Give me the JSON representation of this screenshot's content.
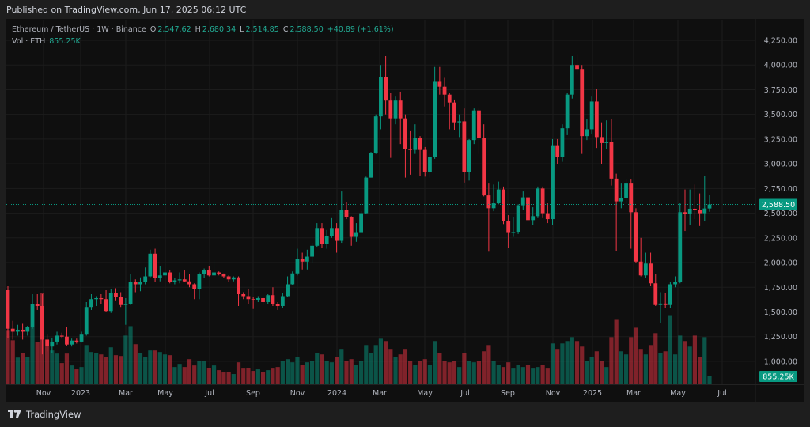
{
  "header": {
    "published": "Published on TradingView.com, Jun 17, 2025 06:12 UTC"
  },
  "legend": {
    "symbol": "Ethereum / TetherUS · 1W · Binance",
    "o_label": "O",
    "o": "2,547.62",
    "h_label": "H",
    "h": "2,680.34",
    "l_label": "L",
    "l": "2,514.85",
    "c_label": "C",
    "c": "2,588.50",
    "change": "+40.89 (+1.61%)",
    "vol_label": "Vol · ETH",
    "vol": "855.25K"
  },
  "footer": {
    "brand": "TradingView",
    "logo_text": "TV"
  },
  "colors": {
    "up": "#089981",
    "down": "#f23645",
    "background": "#0f0f0f",
    "grid": "#1c1c1c",
    "axis_text": "#b2b5be"
  },
  "chart_data": {
    "type": "candlestick",
    "symbol": "Ethereum / TetherUS",
    "interval": "1W",
    "exchange": "Binance",
    "ylim": [
      950,
      4350
    ],
    "grid": true,
    "y_ticks": [
      "4,250.00",
      "4,000.00",
      "3,750.00",
      "3,500.00",
      "3,250.00",
      "3,000.00",
      "2,750.00",
      "2,500.00",
      "2,250.00",
      "2,000.00",
      "1,750.00",
      "1,500.00",
      "1,250.00",
      "1,000.00"
    ],
    "y_tick_values": [
      4250,
      4000,
      3750,
      3500,
      3250,
      3000,
      2750,
      2500,
      2250,
      2000,
      1750,
      1500,
      1250,
      1000
    ],
    "x_ticks": [
      "Nov",
      "2023",
      "Mar",
      "May",
      "Jul",
      "Sep",
      "Nov",
      "2024",
      "Mar",
      "May",
      "Jul",
      "Sep",
      "Nov",
      "2025",
      "Mar",
      "May",
      "Jul"
    ],
    "last_price": 2588.5,
    "last_price_label": "2,588.50",
    "last_volume_label": "855.25K",
    "candle_fields": [
      "open",
      "high",
      "low",
      "close",
      "volume_K"
    ],
    "candles": [
      [
        1720,
        1760,
        1240,
        1330,
        5870
      ],
      [
        1330,
        1410,
        1220,
        1300,
        4760
      ],
      [
        1300,
        1370,
        1260,
        1320,
        2890
      ],
      [
        1320,
        1380,
        1220,
        1300,
        3400
      ],
      [
        1300,
        1360,
        1260,
        1350,
        2980
      ],
      [
        1350,
        1680,
        1330,
        1580,
        6210
      ],
      [
        1580,
        1680,
        1520,
        1560,
        4590
      ],
      [
        1560,
        1680,
        1070,
        1220,
        9860
      ],
      [
        1220,
        1270,
        1100,
        1150,
        4080
      ],
      [
        1150,
        1240,
        1080,
        1200,
        3660
      ],
      [
        1200,
        1300,
        1170,
        1260,
        3320
      ],
      [
        1260,
        1290,
        1230,
        1250,
        2300
      ],
      [
        1250,
        1350,
        1160,
        1170,
        3320
      ],
      [
        1170,
        1230,
        1150,
        1210,
        2040
      ],
      [
        1210,
        1230,
        1180,
        1200,
        1620
      ],
      [
        1200,
        1300,
        1190,
        1270,
        1870
      ],
      [
        1270,
        1600,
        1260,
        1550,
        4250
      ],
      [
        1550,
        1680,
        1520,
        1630,
        3490
      ],
      [
        1630,
        1660,
        1560,
        1640,
        3400
      ],
      [
        1640,
        1680,
        1580,
        1630,
        3230
      ],
      [
        1630,
        1720,
        1500,
        1510,
        2980
      ],
      [
        1510,
        1730,
        1490,
        1690,
        4000
      ],
      [
        1690,
        1740,
        1610,
        1650,
        3150
      ],
      [
        1650,
        1700,
        1550,
        1570,
        3060
      ],
      [
        1570,
        1640,
        1370,
        1580,
        5270
      ],
      [
        1580,
        1880,
        1570,
        1800,
        6290
      ],
      [
        1800,
        1830,
        1700,
        1780,
        4340
      ],
      [
        1780,
        1850,
        1710,
        1800,
        3400
      ],
      [
        1800,
        1950,
        1780,
        1860,
        2980
      ],
      [
        1860,
        2130,
        1850,
        2090,
        3660
      ],
      [
        2090,
        2140,
        1800,
        1840,
        3660
      ],
      [
        1840,
        1960,
        1810,
        1870,
        3490
      ],
      [
        1870,
        2010,
        1850,
        1900,
        3230
      ],
      [
        1900,
        1920,
        1790,
        1800,
        3150
      ],
      [
        1800,
        1840,
        1780,
        1820,
        1870
      ],
      [
        1820,
        1900,
        1790,
        1830,
        2210
      ],
      [
        1830,
        1920,
        1800,
        1810,
        1870
      ],
      [
        1810,
        1880,
        1750,
        1780,
        2720
      ],
      [
        1780,
        1790,
        1630,
        1730,
        2040
      ],
      [
        1730,
        1900,
        1630,
        1880,
        2550
      ],
      [
        1880,
        1940,
        1840,
        1920,
        2550
      ],
      [
        1920,
        1960,
        1860,
        1870,
        1790
      ],
      [
        1870,
        2020,
        1850,
        1900,
        2040
      ],
      [
        1900,
        1910,
        1870,
        1880,
        1530
      ],
      [
        1880,
        1890,
        1840,
        1860,
        1280
      ],
      [
        1860,
        1870,
        1800,
        1830,
        1360
      ],
      [
        1830,
        1860,
        1810,
        1850,
        1110
      ],
      [
        1850,
        1860,
        1560,
        1680,
        2380
      ],
      [
        1680,
        1700,
        1630,
        1660,
        1700
      ],
      [
        1660,
        1730,
        1580,
        1630,
        1790
      ],
      [
        1630,
        1650,
        1530,
        1620,
        1450
      ],
      [
        1620,
        1660,
        1600,
        1640,
        1620
      ],
      [
        1640,
        1650,
        1570,
        1600,
        1360
      ],
      [
        1600,
        1680,
        1580,
        1670,
        1530
      ],
      [
        1670,
        1750,
        1560,
        1580,
        1700
      ],
      [
        1580,
        1600,
        1520,
        1560,
        1870
      ],
      [
        1560,
        1690,
        1540,
        1660,
        2550
      ],
      [
        1660,
        1860,
        1650,
        1780,
        2720
      ],
      [
        1780,
        1910,
        1770,
        1890,
        2380
      ],
      [
        1890,
        2140,
        1870,
        2040,
        2980
      ],
      [
        2040,
        2100,
        1930,
        2010,
        2130
      ],
      [
        2010,
        2130,
        1930,
        2060,
        2380
      ],
      [
        2060,
        2200,
        2000,
        2170,
        2550
      ],
      [
        2170,
        2400,
        2160,
        2350,
        3400
      ],
      [
        2350,
        2400,
        2150,
        2190,
        3230
      ],
      [
        2190,
        2330,
        2140,
        2270,
        2550
      ],
      [
        2270,
        2450,
        2250,
        2350,
        2380
      ],
      [
        2350,
        2400,
        2100,
        2220,
        2980
      ],
      [
        2220,
        2720,
        2200,
        2530,
        3830
      ],
      [
        2530,
        2610,
        2440,
        2460,
        2550
      ],
      [
        2460,
        2470,
        2170,
        2260,
        2720
      ],
      [
        2260,
        2400,
        2210,
        2300,
        2130
      ],
      [
        2300,
        2520,
        2300,
        2500,
        2550
      ],
      [
        2500,
        2870,
        2490,
        2860,
        4250
      ],
      [
        2860,
        3120,
        2860,
        3110,
        3400
      ],
      [
        3110,
        3500,
        3100,
        3480,
        4250
      ],
      [
        3480,
        4000,
        3350,
        3880,
        4930
      ],
      [
        3880,
        4090,
        3500,
        3640,
        4680
      ],
      [
        3640,
        3720,
        3060,
        3460,
        3830
      ],
      [
        3460,
        3680,
        3400,
        3640,
        2980
      ],
      [
        3640,
        3730,
        3200,
        3460,
        3230
      ],
      [
        3460,
        3500,
        2860,
        3150,
        3830
      ],
      [
        3150,
        3330,
        2890,
        3140,
        2550
      ],
      [
        3140,
        3400,
        3100,
        3260,
        2130
      ],
      [
        3260,
        3280,
        2880,
        3140,
        2550
      ],
      [
        3140,
        3170,
        2870,
        2920,
        2720
      ],
      [
        2920,
        3100,
        2860,
        3070,
        2130
      ],
      [
        3070,
        3980,
        3050,
        3830,
        4680
      ],
      [
        3830,
        3980,
        3700,
        3780,
        3400
      ],
      [
        3780,
        3870,
        3580,
        3700,
        2550
      ],
      [
        3700,
        3720,
        3350,
        3620,
        2380
      ],
      [
        3620,
        3650,
        3340,
        3420,
        2550
      ],
      [
        3420,
        3500,
        3270,
        3430,
        1870
      ],
      [
        3430,
        3560,
        2810,
        2920,
        3400
      ],
      [
        2920,
        3250,
        2830,
        3240,
        2550
      ],
      [
        3240,
        3560,
        3200,
        3540,
        2380
      ],
      [
        3540,
        3560,
        3100,
        3260,
        2550
      ],
      [
        3260,
        3400,
        2670,
        2680,
        3570
      ],
      [
        2680,
        2800,
        2110,
        2550,
        4250
      ],
      [
        2550,
        2790,
        2520,
        2600,
        2550
      ],
      [
        2600,
        2820,
        2590,
        2740,
        2130
      ],
      [
        2740,
        2770,
        2390,
        2420,
        1870
      ],
      [
        2420,
        2480,
        2150,
        2300,
        2380
      ],
      [
        2300,
        2460,
        2260,
        2310,
        1700
      ],
      [
        2310,
        2590,
        2290,
        2580,
        2130
      ],
      [
        2580,
        2720,
        2530,
        2660,
        1870
      ],
      [
        2660,
        2680,
        2400,
        2430,
        2130
      ],
      [
        2430,
        2560,
        2380,
        2470,
        1700
      ],
      [
        2470,
        2770,
        2450,
        2750,
        1870
      ],
      [
        2750,
        2770,
        2450,
        2500,
        2130
      ],
      [
        2500,
        2600,
        2400,
        2440,
        1700
      ],
      [
        2440,
        3250,
        2380,
        3180,
        4420
      ],
      [
        3180,
        3250,
        3000,
        3070,
        3830
      ],
      [
        3070,
        3400,
        3020,
        3360,
        4420
      ],
      [
        3360,
        3720,
        3290,
        3700,
        4680
      ],
      [
        3700,
        4090,
        3660,
        4000,
        5100
      ],
      [
        4000,
        4110,
        3900,
        3960,
        4680
      ],
      [
        3960,
        4000,
        3100,
        3280,
        4080
      ],
      [
        3280,
        3450,
        3240,
        3350,
        2550
      ],
      [
        3350,
        3680,
        3300,
        3630,
        2980
      ],
      [
        3630,
        3760,
        3160,
        3270,
        3570
      ],
      [
        3270,
        3420,
        3000,
        3210,
        2550
      ],
      [
        3210,
        3440,
        3150,
        3220,
        1870
      ],
      [
        3220,
        3450,
        2780,
        2850,
        5100
      ],
      [
        2850,
        2900,
        2120,
        2620,
        6970
      ],
      [
        2620,
        2800,
        2550,
        2650,
        3570
      ],
      [
        2650,
        2850,
        2600,
        2800,
        3230
      ],
      [
        2800,
        2840,
        2140,
        2510,
        5100
      ],
      [
        2510,
        2550,
        2000,
        2010,
        6120
      ],
      [
        2010,
        2250,
        1860,
        1870,
        3830
      ],
      [
        1870,
        2100,
        1840,
        1990,
        3230
      ],
      [
        1990,
        2100,
        1760,
        1790,
        4250
      ],
      [
        1790,
        1880,
        1560,
        1570,
        5530
      ],
      [
        1570,
        1700,
        1390,
        1585,
        3400
      ],
      [
        1585,
        1690,
        1540,
        1570,
        3570
      ],
      [
        1570,
        1800,
        1540,
        1780,
        7480
      ],
      [
        1780,
        1860,
        1750,
        1800,
        3230
      ],
      [
        1800,
        2600,
        1790,
        2510,
        5270
      ],
      [
        2510,
        2740,
        2320,
        2490,
        4680
      ],
      [
        2490,
        2740,
        2380,
        2545,
        4080
      ],
      [
        2545,
        2790,
        2440,
        2530,
        5270
      ],
      [
        2530,
        2700,
        2370,
        2500,
        2980
      ],
      [
        2500,
        2880,
        2420,
        2547.62,
        5100
      ],
      [
        2547.62,
        2680.34,
        2514.85,
        2588.5,
        855.25
      ]
    ]
  }
}
